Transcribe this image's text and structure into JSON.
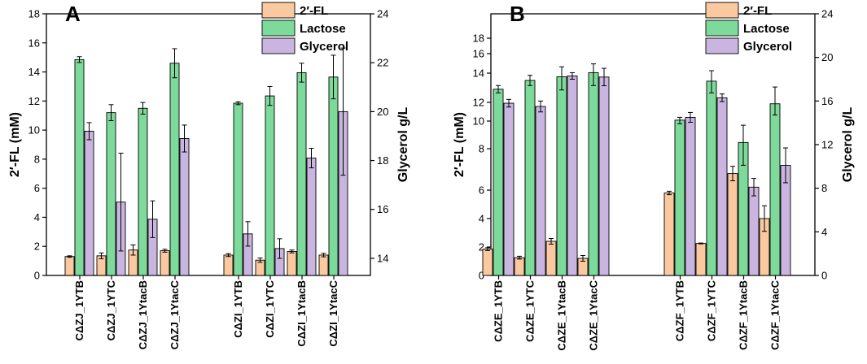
{
  "colors": {
    "2FL": "#FBC9A0",
    "Lactose": "#7DDA9A",
    "Glycerol": "#C9B5E0"
  },
  "chart_data": [
    {
      "panel": "A",
      "type": "bar",
      "ylabel": "2′-FL (mM)",
      "y2label": "Glycerol g/L",
      "ylim": [
        0,
        18
      ],
      "yticks": [
        0,
        2,
        4,
        6,
        8,
        10,
        12,
        14,
        16,
        18
      ],
      "y2lim": [
        13.3,
        24
      ],
      "y2ticks": [
        14,
        16,
        18,
        20,
        22,
        24
      ],
      "legend": [
        "2′-FL",
        "Lactose",
        "Glycerol"
      ],
      "groups": [
        {
          "categories": [
            "CΔZJ_1YTB",
            "CΔZJ_1YTC",
            "CΔZJ_1YtacB",
            "CΔZJ_1YtacC"
          ]
        },
        {
          "categories": [
            "CΔZI_1YTB",
            "CΔZI_1YTC",
            "CΔZI_1YtacB",
            "CΔZI_1YtacC"
          ]
        }
      ],
      "series": [
        {
          "name": "2′-FL",
          "axis": "left",
          "values": [
            1.3,
            1.35,
            1.75,
            1.7,
            1.4,
            1.05,
            1.65,
            1.4
          ],
          "errors": [
            0.05,
            0.2,
            0.35,
            0.1,
            0.1,
            0.15,
            0.1,
            0.12
          ]
        },
        {
          "name": "Lactose",
          "axis": "left",
          "values": [
            14.85,
            11.2,
            11.5,
            14.6,
            11.85,
            12.35,
            13.95,
            13.65
          ],
          "errors": [
            0.2,
            0.55,
            0.4,
            1.0,
            0.1,
            0.65,
            0.65,
            1.5
          ]
        },
        {
          "name": "Glycerol",
          "axis": "right",
          "values": [
            19.2,
            16.3,
            15.6,
            18.9,
            15.0,
            14.4,
            18.1,
            20.0
          ],
          "errors": [
            0.35,
            2.0,
            0.75,
            0.55,
            0.5,
            0.4,
            0.4,
            2.6
          ]
        }
      ]
    },
    {
      "panel": "B",
      "type": "bar",
      "ylabel": "2′-FL (mM)",
      "y2label": "Glycerol g/L",
      "yscale": "broken",
      "yticks": [
        0,
        2,
        4,
        6,
        8,
        10,
        12,
        14,
        16,
        18
      ],
      "y2lim": [
        0,
        24
      ],
      "y2ticks": [
        0,
        4,
        8,
        12,
        16,
        20,
        24
      ],
      "legend": [
        "2′-FL",
        "Lactose",
        "Glycerol"
      ],
      "groups": [
        {
          "categories": [
            "CΔZE_1YTB",
            "CΔZE_1YTC",
            "CΔZE_1YtacB",
            "CΔZE_1YtacC"
          ]
        },
        {
          "categories": [
            "CΔZF_1YTB",
            "CΔZF_1YTC",
            "CΔZF_1YtacB",
            "CΔZF_1YtacC"
          ]
        }
      ],
      "series": [
        {
          "name": "2′-FL",
          "axis": "left",
          "values": [
            1.85,
            1.25,
            2.4,
            1.2,
            5.8,
            2.25,
            6.8,
            4.0
          ],
          "errors": [
            0.1,
            0.1,
            0.2,
            0.2,
            0.12,
            0.03,
            0.35,
            0.9
          ]
        },
        {
          "name": "Lactose",
          "axis": "left",
          "values": [
            12.9,
            13.5,
            13.75,
            14.05,
            10.1,
            13.45,
            8.45,
            11.85
          ],
          "errors": [
            0.25,
            0.35,
            0.9,
            0.9,
            0.3,
            0.8,
            1.25,
            1.2
          ]
        },
        {
          "name": "Glycerol",
          "axis": "right",
          "values": [
            15.8,
            15.5,
            18.3,
            18.2,
            14.5,
            16.3,
            8.1,
            10.1
          ],
          "errors": [
            0.35,
            0.5,
            0.3,
            0.8,
            0.45,
            0.35,
            0.8,
            1.6
          ]
        }
      ]
    }
  ]
}
